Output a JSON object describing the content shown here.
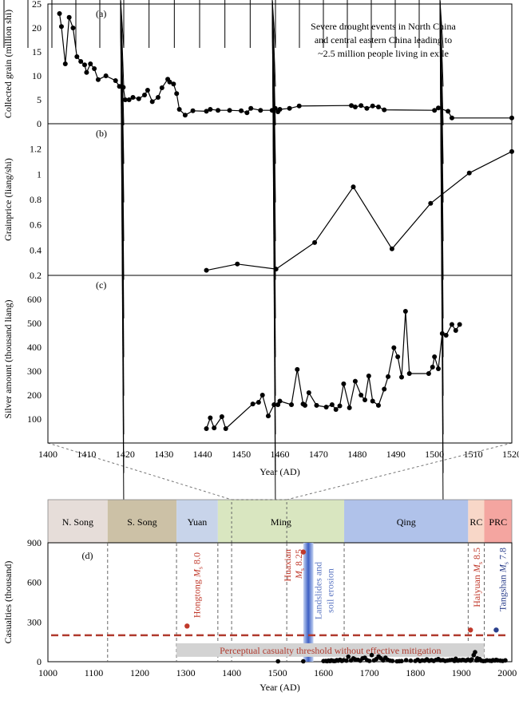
{
  "chart_data": [
    {
      "type": "line",
      "panel_label": "(a)",
      "ylabel": "Collected grain (million shi)",
      "annotation_lines": [
        "Severe drought events in North China",
        "and central eastern China leading to",
        "~2.5 million people living in exile"
      ],
      "xlim": [
        1400,
        1520
      ],
      "ylim": [
        0,
        25
      ],
      "y_ticks": [
        0,
        5,
        10,
        15,
        20,
        25
      ],
      "x": [
        1403,
        1403.5,
        1404.5,
        1405.5,
        1406.5,
        1407.5,
        1408.5,
        1409.5,
        1410,
        1411,
        1412,
        1413,
        1415,
        1417.5,
        1418.5,
        1419.5,
        1420,
        1421,
        1422,
        1423.5,
        1425,
        1425.8,
        1427,
        1428.5,
        1429.5,
        1431,
        1431.5,
        1432.5,
        1433.3,
        1434,
        1435.5,
        1437.5,
        1441,
        1442,
        1444,
        1447,
        1450,
        1451.5,
        1452.5,
        1455,
        1458,
        1458.8,
        1459.5,
        1460,
        1462.5,
        1465,
        1478.5,
        1479.5,
        1481,
        1482.5,
        1484,
        1485.5,
        1487,
        1500,
        1501,
        1503.5,
        1504.5,
        1520
      ],
      "values": [
        23.0,
        20.3,
        12.5,
        22.2,
        20.0,
        14.0,
        13.0,
        12.3,
        10.7,
        12.5,
        11.5,
        9.2,
        10.0,
        9.0,
        7.8,
        7.6,
        5.0,
        5.0,
        5.5,
        5.2,
        6.0,
        7.0,
        4.6,
        5.5,
        7.5,
        9.3,
        8.7,
        8.3,
        6.3,
        3.0,
        1.8,
        2.7,
        2.6,
        3.0,
        2.8,
        2.8,
        2.7,
        2.3,
        3.2,
        2.8,
        2.8,
        3.2,
        2.5,
        3.0,
        3.2,
        3.7,
        3.8,
        3.5,
        3.8,
        3.2,
        3.7,
        3.5,
        2.9,
        2.8,
        3.3,
        2.6,
        1.2,
        1.2
      ]
    },
    {
      "type": "line",
      "panel_label": "(b)",
      "ylabel": "Grainprice (liang/shi)",
      "xlim": [
        1400,
        1520
      ],
      "ylim": [
        0.2,
        1.4
      ],
      "y_ticks": [
        0.2,
        0.4,
        0.6,
        0.8,
        1.0,
        1.2
      ],
      "x": [
        1441,
        1449,
        1459,
        1469,
        1479,
        1489,
        1499,
        1509,
        1520
      ],
      "values": [
        0.24,
        0.29,
        0.25,
        0.46,
        0.9,
        0.41,
        0.77,
        1.01,
        1.18
      ]
    },
    {
      "type": "line",
      "panel_label": "(c)",
      "ylabel": "Silver amount (thousand liang)",
      "xlabel": "Year (AD)",
      "xlim": [
        1400,
        1520
      ],
      "ylim": [
        0,
        700
      ],
      "y_ticks": [
        100,
        200,
        300,
        400,
        500,
        600
      ],
      "x_ticks": [
        1400,
        1410,
        1420,
        1430,
        1440,
        1450,
        1460,
        1470,
        1480,
        1490,
        1500,
        1510,
        1520
      ],
      "x": [
        1441,
        1442,
        1443,
        1445,
        1446,
        1453,
        1454.5,
        1455.5,
        1457,
        1458.5,
        1459.5,
        1460,
        1463,
        1464.5,
        1466,
        1466.5,
        1467.5,
        1469.5,
        1472,
        1473.5,
        1474.5,
        1475.5,
        1476.5,
        1478,
        1479.5,
        1481,
        1482,
        1483,
        1484,
        1485.5,
        1487,
        1488,
        1489.5,
        1490.5,
        1491.5,
        1492.5,
        1493.5,
        1498.5,
        1499.5,
        1500,
        1501,
        1502,
        1503,
        1504.5,
        1505.5,
        1506.5
      ],
      "values": [
        60,
        105,
        63,
        110,
        60,
        163,
        170,
        200,
        113,
        160,
        160,
        175,
        160,
        307,
        163,
        157,
        210,
        157,
        150,
        160,
        140,
        155,
        247,
        147,
        258,
        200,
        180,
        280,
        175,
        157,
        225,
        277,
        398,
        360,
        275,
        550,
        290,
        290,
        317,
        360,
        310,
        457,
        450,
        495,
        470,
        495
      ]
    },
    {
      "type": "scatter",
      "panel_label": "(d)",
      "ylabel": "Casualties (thousand)",
      "xlabel": "Year (AD)",
      "xlim": [
        1000,
        2010
      ],
      "ylim": [
        0,
        900
      ],
      "y_ticks": [
        0,
        300,
        600,
        900
      ],
      "x_ticks": [
        1000,
        1100,
        1200,
        1300,
        1400,
        1500,
        1600,
        1700,
        1800,
        1900,
        2000
      ],
      "dynasties": [
        {
          "label": "N. Song",
          "start": 1000,
          "end": 1130,
          "color": "#e6ddd9"
        },
        {
          "label": "S. Song",
          "start": 1130,
          "end": 1280,
          "color": "#ccc1a6"
        },
        {
          "label": "Yuan",
          "start": 1280,
          "end": 1370,
          "color": "#c8d4ea"
        },
        {
          "label": "Ming",
          "start": 1370,
          "end": 1645,
          "color": "#d9e6c0"
        },
        {
          "label": "Qing",
          "start": 1645,
          "end": 1915,
          "color": "#b0c2ea"
        },
        {
          "label": "RC",
          "start": 1915,
          "end": 1950,
          "color": "#f8d7c8"
        },
        {
          "label": "PRC",
          "start": 1950,
          "end": 2010,
          "color": "#f4a5a0"
        }
      ],
      "threshold_value": 200,
      "threshold_label": "Perceptual casualty threshold without effective mitigation",
      "highlight_band": {
        "start": 1556,
        "end": 1578,
        "label_lines": [
          "Landslides and",
          "soil erosion"
        ]
      },
      "events": [
        {
          "year": 1303,
          "value": 270,
          "label_lines": [
            "Hongtong M",
            "s",
            " 8.0"
          ],
          "color": "#c0392b"
        },
        {
          "year": 1556,
          "value": 830,
          "label_lines": [
            "Huaxian",
            "M",
            "s",
            " 8.25"
          ],
          "color": "#c0392b"
        },
        {
          "year": 1920,
          "value": 240,
          "label_lines": [
            "Haiyuan M",
            "s",
            " 8.5"
          ],
          "color": "#c0392b"
        },
        {
          "year": 1976,
          "value": 240,
          "label_lines": [
            "Tangshan M",
            "s",
            " 7.8"
          ],
          "color": "#2b3f8c"
        }
      ],
      "x": [
        1501,
        1556,
        1600,
        1605,
        1608,
        1611,
        1614,
        1617,
        1620,
        1623,
        1626,
        1629,
        1632,
        1636,
        1640,
        1644,
        1650,
        1654,
        1660,
        1665,
        1669,
        1675,
        1680,
        1685,
        1690,
        1695,
        1700,
        1705,
        1710,
        1715,
        1720,
        1725,
        1730,
        1735,
        1740,
        1745,
        1750,
        1760,
        1765,
        1770,
        1780,
        1790,
        1800,
        1805,
        1810,
        1815,
        1820,
        1825,
        1830,
        1835,
        1840,
        1845,
        1850,
        1855,
        1860,
        1865,
        1870,
        1875,
        1880,
        1885,
        1888,
        1890,
        1893,
        1896,
        1900,
        1903,
        1906,
        1910,
        1914,
        1918,
        1920,
        1923,
        1927,
        1930,
        1933,
        1935,
        1937,
        1940,
        1944,
        1948,
        1952,
        1956,
        1962,
        1966,
        1969,
        1973,
        1976,
        1979,
        1985,
        1990,
        1996
      ],
      "values": [
        3,
        3,
        5,
        6,
        4,
        8,
        5,
        10,
        7,
        5,
        6,
        12,
        8,
        15,
        6,
        12,
        8,
        38,
        10,
        25,
        18,
        15,
        8,
        25,
        30,
        12,
        6,
        50,
        10,
        20,
        40,
        25,
        10,
        30,
        14,
        8,
        6,
        3,
        4,
        5,
        12,
        8,
        6,
        15,
        5,
        10,
        8,
        18,
        7,
        12,
        6,
        14,
        20,
        10,
        12,
        6,
        9,
        12,
        14,
        6,
        22,
        10,
        8,
        12,
        10,
        14,
        12,
        8,
        15,
        12,
        8,
        18,
        50,
        72,
        10,
        25,
        12,
        20,
        8,
        5,
        6,
        10,
        8,
        6,
        12,
        9,
        14,
        10,
        8,
        6,
        10
      ]
    }
  ]
}
